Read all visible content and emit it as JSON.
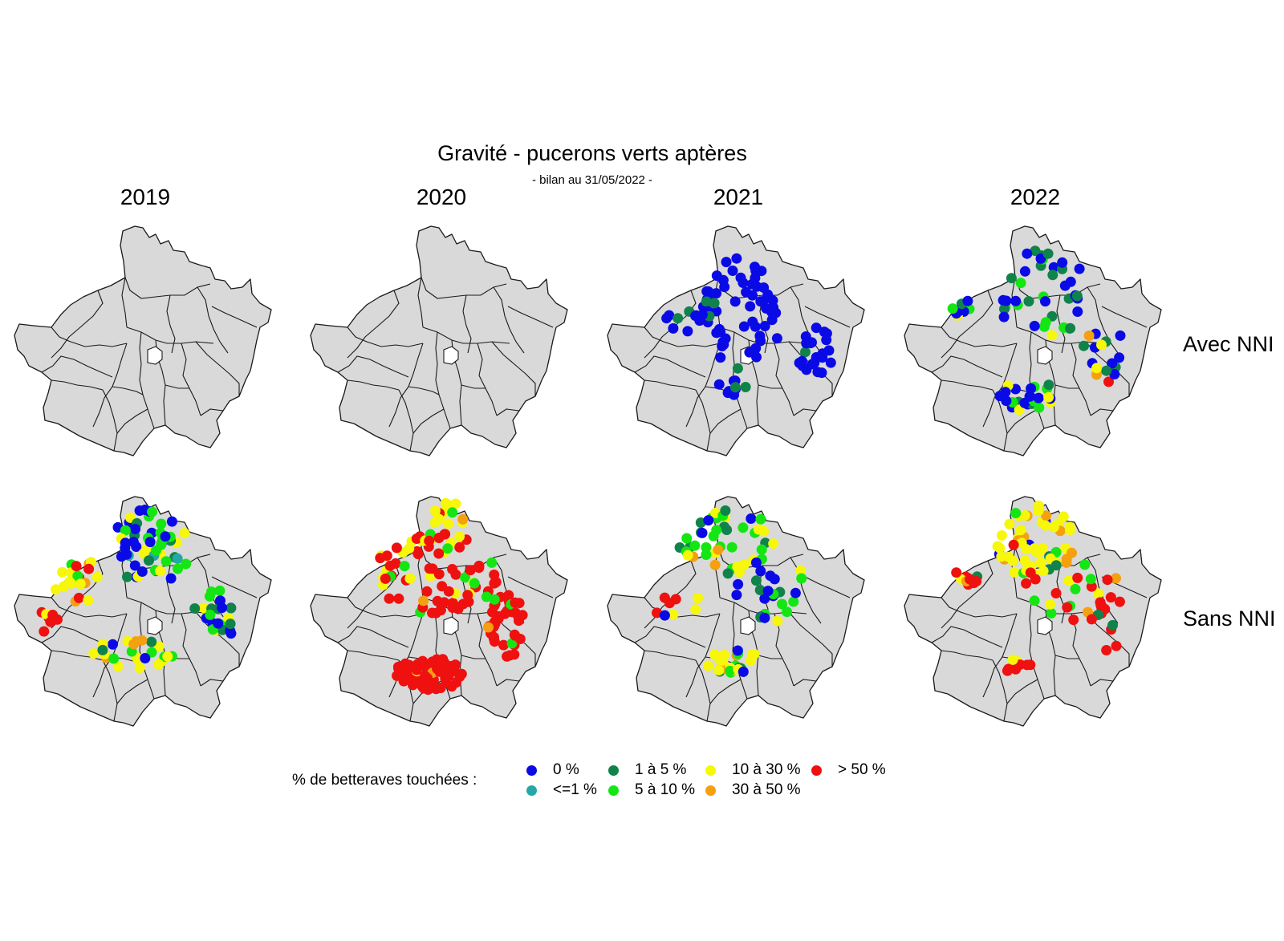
{
  "title": "Gravité - pucerons verts aptères",
  "subtitle": "- bilan au 31/05/2022 -",
  "years": [
    "2019",
    "2020",
    "2021",
    "2022"
  ],
  "rows": [
    "Avec NNI",
    "Sans NNI"
  ],
  "legend": {
    "title": "% de betteraves touchées :",
    "items": [
      {
        "label": "0 %",
        "color": "#0a0ae6"
      },
      {
        "label": "<=1 %",
        "color": "#26a6a6"
      },
      {
        "label": "1 à 5 %",
        "color": "#10834a"
      },
      {
        "label": "5 à 10 %",
        "color": "#14e614"
      },
      {
        "label": "10 à 30 %",
        "color": "#f7f70a"
      },
      {
        "label": "30 à 50 %",
        "color": "#f5a00f"
      },
      {
        "label": "> 50 %",
        "color": "#ef1010"
      }
    ]
  },
  "colors": {
    "land": "#d9d9d9",
    "border": "#1a1a1a"
  }
}
